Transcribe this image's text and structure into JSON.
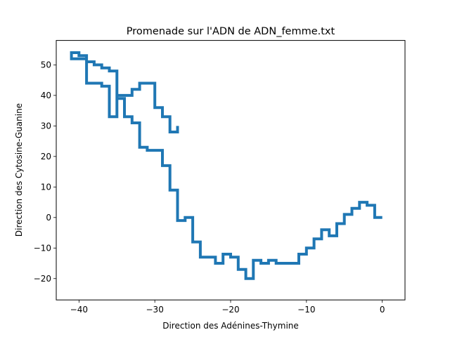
{
  "chart_data": {
    "type": "line",
    "title": "Promenade sur l'ADN de ADN_femme.txt",
    "xlabel": "Direction des Adénines-Thymine",
    "ylabel": "Direction des Cytosine-Guanine",
    "xlim": [
      -43,
      3
    ],
    "ylim": [
      -27,
      58
    ],
    "xticks": [
      -40,
      -30,
      -20,
      -10,
      0
    ],
    "yticks": [
      -20,
      -10,
      0,
      10,
      20,
      30,
      40,
      50
    ],
    "xtick_labels": [
      "−40",
      "−30",
      "−20",
      "−10",
      "0"
    ],
    "ytick_labels": [
      "−20",
      "−10",
      "0",
      "10",
      "20",
      "30",
      "40",
      "50"
    ],
    "grid": false,
    "series": [
      {
        "color": "#1f77b4",
        "x": [
          0,
          -1,
          -2,
          -3,
          -4,
          -5,
          -6,
          -7,
          -8,
          -9,
          -10,
          -11,
          -13,
          -14,
          -15,
          -16,
          -17,
          -18,
          -19,
          -20,
          -21,
          -22,
          -23,
          -24,
          -25,
          -26,
          -27,
          -28,
          -29,
          -30,
          -31,
          -32,
          -33,
          -34,
          -35,
          -36,
          -37,
          -38,
          -39,
          -40,
          -41,
          -39,
          -37,
          -36,
          -35,
          -33,
          -32,
          -30,
          -29,
          -28,
          -27
        ],
        "y": [
          0,
          4,
          5,
          3,
          1,
          -2,
          -6,
          -4,
          -7,
          -10,
          -12,
          -15,
          -15,
          -14,
          -15,
          -14,
          -20,
          -17,
          -13,
          -12,
          -15,
          -13,
          -13,
          -8,
          0,
          -1,
          9,
          17,
          22,
          22,
          23,
          31,
          33,
          39,
          48,
          49,
          50,
          51,
          53,
          54,
          52,
          44,
          43,
          33,
          40,
          42,
          44,
          36,
          33,
          28,
          30
        ]
      }
    ]
  }
}
